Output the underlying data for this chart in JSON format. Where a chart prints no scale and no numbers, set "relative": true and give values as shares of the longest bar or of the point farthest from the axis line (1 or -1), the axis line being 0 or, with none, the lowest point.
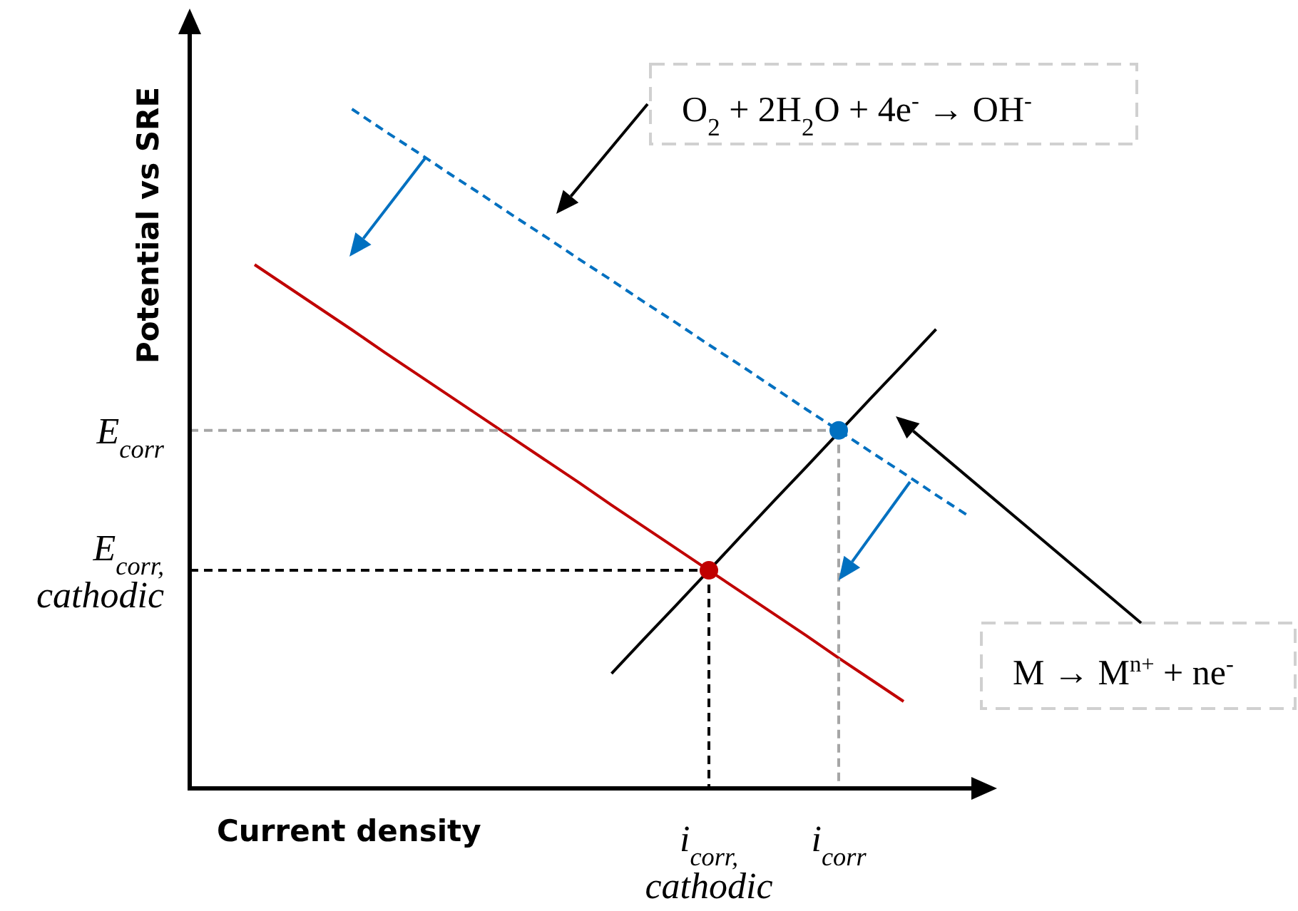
{
  "chart_data": {
    "type": "line",
    "relative": true,
    "xlabel": "Current density",
    "ylabel": "Potential vs SRE",
    "categories": [
      null,
      null,
      null,
      null,
      null,
      null,
      null,
      null,
      null,
      null,
      null,
      null,
      null,
      null,
      null,
      null,
      "i$_{corr,}$\ncathodic",
      null,
      null,
      null,
      "i$_{corr}$",
      null,
      null,
      null,
      null
    ],
    "series": [
      {
        "color": "#0070c0",
        "line_style": "dashed",
        "values": [
          null,
          null,
          null,
          null,
          null,
          1,
          0.968,
          0.937,
          0.905,
          0.874,
          0.842,
          0.811,
          0.779,
          0.748,
          0.716,
          0.685,
          0.653,
          0.622,
          0.59,
          0.558,
          0.527,
          0.495,
          0.464,
          0.432,
          0.401
        ]
      },
      {
        "color": "#c00000",
        "values": [
          null,
          null,
          0.771,
          0.739,
          0.707,
          0.675,
          0.642,
          0.61,
          0.578,
          0.546,
          0.514,
          0.482,
          0.45,
          0.417,
          0.385,
          0.353,
          0.321,
          0.289,
          0.257,
          0.225,
          0.192,
          0.16,
          0.128,
          null,
          null
        ]
      },
      {
        "color": "#000000",
        "values": [
          null,
          null,
          null,
          null,
          null,
          null,
          null,
          null,
          null,
          null,
          null,
          null,
          null,
          0.169,
          0.22,
          0.27,
          0.321,
          0.372,
          0.423,
          0.473,
          0.524,
          0.575,
          0.625,
          0.676,
          null
        ]
      },
      {
        "name": "E$_{corr}$",
        "color": "#a6a6a6",
        "line_style": "dashed",
        "values": [
          0.527,
          0.527,
          0.527,
          0.527,
          0.527,
          0.527,
          0.527,
          0.527,
          0.527,
          0.527,
          0.527,
          0.527,
          0.527,
          0.527,
          0.527,
          0.527,
          0.527,
          0.527,
          0.527,
          0.527,
          0.527,
          null,
          null,
          null,
          null
        ]
      },
      {
        "name": "E$_{corr,}$\ncathodic",
        "color": "#000000",
        "line_style": "dashed",
        "values": [
          0.321,
          0.321,
          0.321,
          0.321,
          0.321,
          0.321,
          0.321,
          0.321,
          0.321,
          0.321,
          0.321,
          0.321,
          0.321,
          0.321,
          0.321,
          0.321,
          0.321,
          null,
          null,
          null,
          null,
          null,
          null,
          null,
          null
        ]
      },
      {
        "type": "scatter",
        "marker": "circle",
        "color": "#0070c0",
        "values": [
          null,
          null,
          null,
          null,
          null,
          null,
          null,
          null,
          null,
          null,
          null,
          null,
          null,
          null,
          null,
          null,
          null,
          null,
          null,
          null,
          0.527,
          null,
          null,
          null,
          null
        ]
      },
      {
        "type": "scatter",
        "marker": "circle",
        "color": "#c00000",
        "values": [
          null,
          null,
          null,
          null,
          null,
          null,
          null,
          null,
          null,
          null,
          null,
          null,
          null,
          null,
          null,
          null,
          0.321,
          null,
          null,
          null,
          null,
          null,
          null,
          null,
          null
        ]
      }
    ],
    "annotations": [
      "O$_{2}$ + 2H$_{2}$O + 4e$^{-}$ → OH$^{-}$",
      "M → M$^{n+}$ + ne$^{-}$"
    ]
  }
}
